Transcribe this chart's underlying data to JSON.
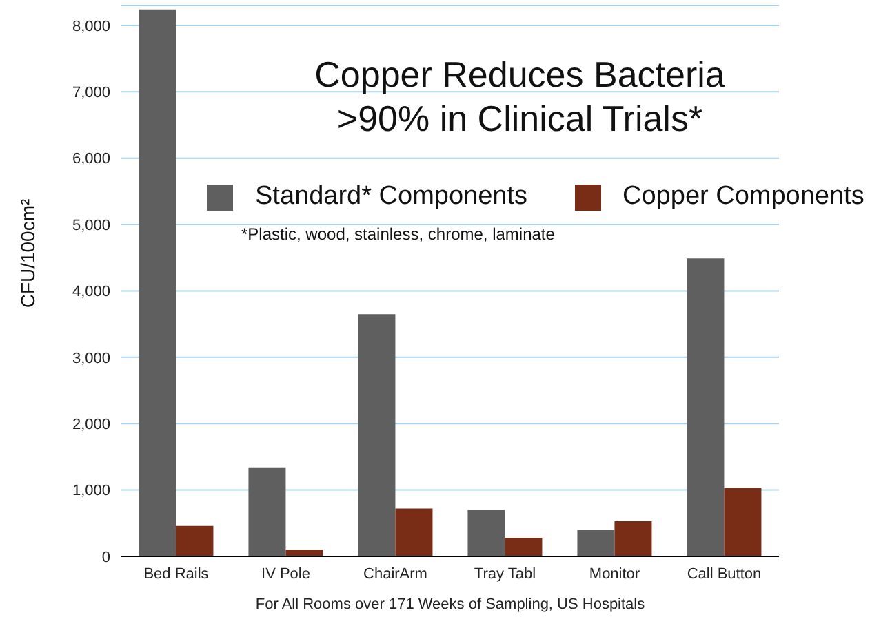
{
  "chart_data": {
    "type": "bar",
    "title": "Copper Reduces Bacteria >90% in Clinical Trials*",
    "ylabel": "CFU/100cm²",
    "xlabel": "For All Rooms over 171 Weeks of Sampling, US Hospitals",
    "annotations": [
      "*Plastic, wood, stainless, chrome, laminate"
    ],
    "categories": [
      "Bed Rails",
      "IV Pole",
      "ChairArm",
      "Tray  Tabl",
      "Monitor",
      "Call Button"
    ],
    "series": [
      {
        "name": "Standard* Components",
        "color": "#5f5f5f",
        "values": [
          8240,
          1340,
          3650,
          700,
          400,
          4490
        ]
      },
      {
        "name": "Copper Components",
        "color": "#7a2d16",
        "values": [
          460,
          100,
          720,
          280,
          530,
          1030
        ]
      }
    ],
    "ylim": [
      0,
      8300
    ],
    "yticks": [
      {
        "value": 0,
        "label": "0"
      },
      {
        "value": 1000,
        "label": "1,000"
      },
      {
        "value": 2000,
        "label": "2,000"
      },
      {
        "value": 3000,
        "label": "3,000"
      },
      {
        "value": 4000,
        "label": "4,000"
      },
      {
        "value": 5000,
        "label": "5,000"
      },
      {
        "value": 6000,
        "label": "6,000"
      },
      {
        "value": 7000,
        "label": "7,000"
      },
      {
        "value": 8000,
        "label": "8,000"
      }
    ],
    "grid": "y",
    "legend": "top right"
  }
}
